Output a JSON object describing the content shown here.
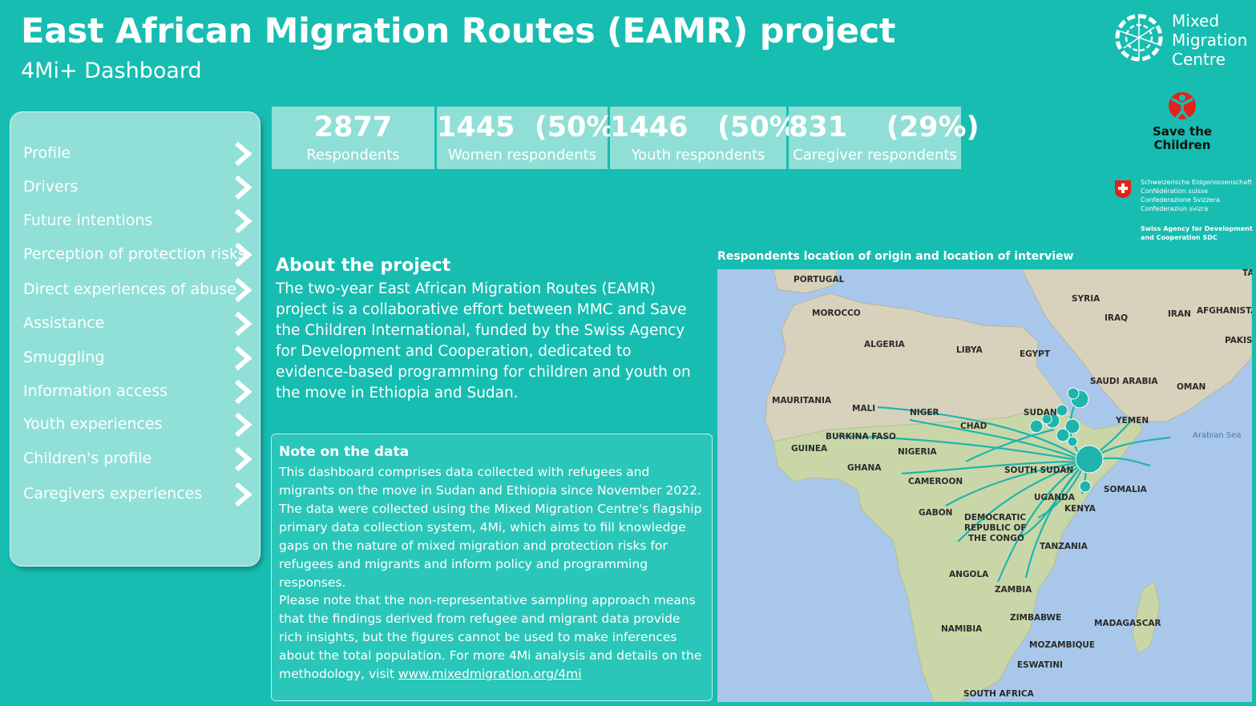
{
  "header": {
    "title": "East African Migration Routes (EAMR) project",
    "subtitle": "4Mi+ Dashboard"
  },
  "logos": {
    "mmc": {
      "line1": "Mixed",
      "line2": "Migration",
      "line3": "Centre"
    },
    "stc": {
      "line1": "Save the",
      "line2": "Children"
    },
    "sdc": {
      "lines": [
        "Schweizerische Eidgenossenschaft",
        "Confédération suisse",
        "Confederazione Svizzera",
        "Confederaziun svizra"
      ],
      "agency": [
        "Swiss Agency for Development",
        "and Cooperation SDC"
      ]
    }
  },
  "sidebar": {
    "items": [
      {
        "label": "Profile"
      },
      {
        "label": "Drivers"
      },
      {
        "label": "Future intentions"
      },
      {
        "label": "Perception of protection risks"
      },
      {
        "label": "Direct experiences of abuse"
      },
      {
        "label": "Assistance"
      },
      {
        "label": "Smuggling"
      },
      {
        "label": "Information access"
      },
      {
        "label": "Youth experiences"
      },
      {
        "label": "Children's profile"
      },
      {
        "label": "Caregivers experiences"
      }
    ]
  },
  "kpis": [
    {
      "value": "2877",
      "label": "Respondents"
    },
    {
      "value": "1445  (50%)",
      "label": "Women respondents"
    },
    {
      "value": "1446   (50%)",
      "label": "Youth respondents"
    },
    {
      "value": "831    (29%)",
      "label": "Caregiver respondents"
    }
  ],
  "about": {
    "heading": "About the project",
    "text": "The two-year East African Migration Routes (EAMR) project is a collaborative effort between MMC and Save the Children International, funded by the Swiss Agency for Development and Cooperation, dedicated to evidence-based programming for children and youth on the move in Ethiopia and Sudan."
  },
  "note": {
    "heading": "Note on the data",
    "p1": "This dashboard comprises data collected with refugees and migrants on the move in Sudan and Ethiopia since November 2022. The data were collected using the Mixed Migration Centre's flagship primary data collection system, 4Mi, which aims to fill knowledge gaps on the nature of mixed migration and protection risks for refugees and migrants and inform policy and programming responses.",
    "p2": "Please note that the non-representative sampling approach means that the findings derived from refugee and migrant data provide rich insights, but the figures cannot be used to make inferences about the total population. For more 4Mi analysis and details on the methodology, visit ",
    "link": "www.mixedmigration.org/4mi"
  },
  "map": {
    "title": "Respondents location of origin and location of interview",
    "flow_color": "#1fb5ad",
    "countries": {
      "portugal": "PORTUGAL",
      "morocco": "MOROCCO",
      "algeria": "ALGERIA",
      "libya": "LIBYA",
      "egypt": "EGYPT",
      "syria": "SYRIA",
      "iraq": "IRAQ",
      "iran": "IRAN",
      "afghanistan": "AFGHANISTA",
      "pakistan": "PAKIS",
      "ta": "TA",
      "saudi": "SAUDI ARABIA",
      "oman": "OMAN",
      "yemen": "YEMEN",
      "mauritania": "MAURITANIA",
      "mali": "MALI",
      "niger": "NIGER",
      "chad": "CHAD",
      "sudan": "SUDAN",
      "burkina": "BURKINA FASO",
      "guinea": "GUINEA",
      "ghana": "GHANA",
      "nigeria": "NIGERIA",
      "cameroon": "CAMEROON",
      "south_sudan": "SOUTH SUDAN",
      "somalia": "SOMALIA",
      "uganda": "UGANDA",
      "kenya": "KENYA",
      "gabon": "GABON",
      "drc1": "DEMOCRATIC",
      "drc2": "REPUBLIC OF",
      "drc3": "THE CONGO",
      "tanzania": "TANZANIA",
      "angola": "ANGOLA",
      "zambia": "ZAMBIA",
      "zimbabwe": "ZIMBABWE",
      "namibia": "NAMIBIA",
      "madagascar": "MADAGASCAR",
      "mozambique": "MOZAMBIQUE",
      "eswatini": "ESWATINI",
      "south_africa": "SOUTH AFRICA",
      "arabian_sea": "Arabian Sea"
    }
  }
}
